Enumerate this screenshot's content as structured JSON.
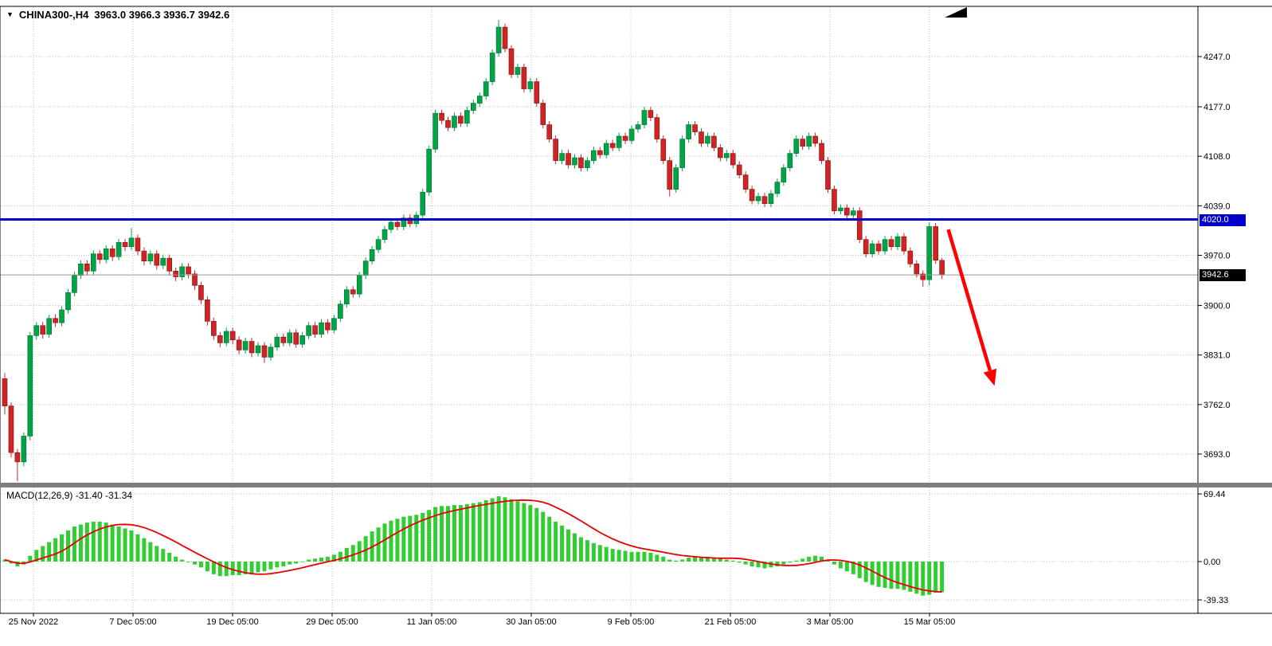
{
  "chart_window": {
    "dropdown_glyph": "▼",
    "symbol": "CHINA300-,H4",
    "ohlc": "3963.0 3966.3 3936.7 3942.6"
  },
  "price_axis": {
    "hline_label": "4020.0",
    "current_label": "3942.6"
  },
  "macd_panel": {
    "label": "MACD(12,26,9) -31.40 -31.34"
  },
  "colors": {
    "bull": "#00A447",
    "bull_edge": "#006B2D",
    "bear": "#D02424",
    "bear_edge": "#7E1010",
    "macd_histogram": "#32CD32",
    "signal": "#E80000",
    "hline": "#0000CC",
    "current_line": "#999999",
    "arrow": "#FF0000",
    "grid": "#C0C0C0",
    "axis_text": "#000000",
    "badge_hline_bg": "#0000CC",
    "badge_current_bg": "#000000"
  },
  "chart_data": [
    {
      "type": "candlestick",
      "title": "CHINA300-,H4",
      "symbol": "CHINA300-",
      "timeframe": "H4",
      "last_ohlc": {
        "open": 3963.0,
        "high": 3966.3,
        "low": 3936.7,
        "close": 3942.6
      },
      "y_ticks": [
        4247,
        4177,
        4108,
        4039,
        3970,
        3900,
        3831,
        3762,
        3693
      ],
      "x_ticks": [
        "25 Nov 2022",
        "7 Dec 05:00",
        "19 Dec 05:00",
        "29 Dec 05:00",
        "11 Jan 05:00",
        "30 Jan 05:00",
        "9 Feb 05:00",
        "21 Feb 05:00",
        "3 Mar 05:00",
        "15 Mar 05:00"
      ],
      "hline": 4020.0,
      "current_price": 3942.6,
      "annotation_arrow": {
        "from_bar": 149,
        "from_price": 4006,
        "to_bar": 156.3,
        "to_price": 3788,
        "color": "#FF0000"
      },
      "candles": [
        [
          3798,
          3806,
          3748,
          3760
        ],
        [
          3760,
          3765,
          3688,
          3695
        ],
        [
          3695,
          3700,
          3655,
          3682
        ],
        [
          3682,
          3723,
          3676,
          3718
        ],
        [
          3718,
          3863,
          3712,
          3858
        ],
        [
          3858,
          3877,
          3852,
          3872
        ],
        [
          3872,
          3877,
          3854,
          3860
        ],
        [
          3860,
          3887,
          3855,
          3882
        ],
        [
          3882,
          3888,
          3870,
          3876
        ],
        [
          3876,
          3899,
          3871,
          3894
        ],
        [
          3894,
          3923,
          3889,
          3918
        ],
        [
          3918,
          3947,
          3913,
          3942
        ],
        [
          3942,
          3963,
          3937,
          3958
        ],
        [
          3958,
          3963,
          3942,
          3948
        ],
        [
          3948,
          3977,
          3943,
          3972
        ],
        [
          3972,
          3977,
          3958,
          3964
        ],
        [
          3964,
          3984,
          3959,
          3979
        ],
        [
          3979,
          3984,
          3962,
          3968
        ],
        [
          3968,
          3993,
          3963,
          3988
        ],
        [
          3988,
          3993,
          3976,
          3982
        ],
        [
          3982,
          4008,
          3977,
          3994
        ],
        [
          3994,
          3999,
          3970,
          3976
        ],
        [
          3976,
          3981,
          3956,
          3962
        ],
        [
          3962,
          3977,
          3957,
          3972
        ],
        [
          3972,
          3977,
          3950,
          3956
        ],
        [
          3956,
          3971,
          3951,
          3966
        ],
        [
          3966,
          3971,
          3942,
          3948
        ],
        [
          3948,
          3953,
          3934,
          3940
        ],
        [
          3940,
          3959,
          3935,
          3954
        ],
        [
          3954,
          3959,
          3938,
          3944
        ],
        [
          3944,
          3949,
          3922,
          3928
        ],
        [
          3928,
          3933,
          3902,
          3908
        ],
        [
          3908,
          3913,
          3872,
          3878
        ],
        [
          3878,
          3883,
          3852,
          3858
        ],
        [
          3858,
          3863,
          3842,
          3848
        ],
        [
          3848,
          3869,
          3843,
          3864
        ],
        [
          3864,
          3869,
          3846,
          3852
        ],
        [
          3852,
          3857,
          3832,
          3838
        ],
        [
          3838,
          3855,
          3833,
          3850
        ],
        [
          3850,
          3855,
          3828,
          3834
        ],
        [
          3834,
          3849,
          3829,
          3844
        ],
        [
          3844,
          3849,
          3820,
          3828
        ],
        [
          3828,
          3847,
          3823,
          3842
        ],
        [
          3842,
          3861,
          3837,
          3856
        ],
        [
          3856,
          3861,
          3843,
          3848
        ],
        [
          3848,
          3867,
          3843,
          3862
        ],
        [
          3862,
          3867,
          3841,
          3846
        ],
        [
          3846,
          3863,
          3841,
          3858
        ],
        [
          3858,
          3877,
          3853,
          3872
        ],
        [
          3872,
          3877,
          3855,
          3860
        ],
        [
          3860,
          3881,
          3855,
          3876
        ],
        [
          3876,
          3881,
          3861,
          3866
        ],
        [
          3866,
          3887,
          3861,
          3882
        ],
        [
          3882,
          3907,
          3877,
          3902
        ],
        [
          3902,
          3927,
          3897,
          3922
        ],
        [
          3922,
          3927,
          3911,
          3916
        ],
        [
          3916,
          3947,
          3911,
          3942
        ],
        [
          3942,
          3967,
          3937,
          3962
        ],
        [
          3962,
          3983,
          3957,
          3978
        ],
        [
          3978,
          3997,
          3973,
          3992
        ],
        [
          3992,
          4011,
          3987,
          4006
        ],
        [
          4006,
          4021,
          4001,
          4016
        ],
        [
          4016,
          4021,
          4005,
          4010
        ],
        [
          4010,
          4027,
          4005,
          4022
        ],
        [
          4022,
          4027,
          4009,
          4014
        ],
        [
          4014,
          4031,
          4009,
          4026
        ],
        [
          4026,
          4063,
          4021,
          4058
        ],
        [
          4058,
          4123,
          4053,
          4118
        ],
        [
          4118,
          4173,
          4113,
          4168
        ],
        [
          4168,
          4173,
          4153,
          4158
        ],
        [
          4158,
          4163,
          4143,
          4148
        ],
        [
          4148,
          4169,
          4143,
          4164
        ],
        [
          4164,
          4169,
          4149,
          4154
        ],
        [
          4154,
          4177,
          4149,
          4172
        ],
        [
          4172,
          4187,
          4167,
          4182
        ],
        [
          4182,
          4197,
          4177,
          4192
        ],
        [
          4192,
          4217,
          4187,
          4212
        ],
        [
          4212,
          4257,
          4207,
          4252
        ],
        [
          4252,
          4298,
          4247,
          4288
        ],
        [
          4288,
          4293,
          4253,
          4258
        ],
        [
          4258,
          4263,
          4217,
          4222
        ],
        [
          4222,
          4237,
          4217,
          4232
        ],
        [
          4232,
          4237,
          4197,
          4202
        ],
        [
          4202,
          4217,
          4197,
          4212
        ],
        [
          4212,
          4217,
          4177,
          4182
        ],
        [
          4182,
          4187,
          4147,
          4152
        ],
        [
          4152,
          4157,
          4127,
          4132
        ],
        [
          4132,
          4137,
          4097,
          4102
        ],
        [
          4102,
          4117,
          4097,
          4112
        ],
        [
          4112,
          4117,
          4091,
          4096
        ],
        [
          4096,
          4111,
          4091,
          4106
        ],
        [
          4106,
          4111,
          4087,
          4092
        ],
        [
          4092,
          4107,
          4087,
          4102
        ],
        [
          4102,
          4121,
          4097,
          4116
        ],
        [
          4116,
          4121,
          4105,
          4110
        ],
        [
          4110,
          4131,
          4105,
          4126
        ],
        [
          4126,
          4131,
          4115,
          4120
        ],
        [
          4120,
          4141,
          4115,
          4136
        ],
        [
          4136,
          4141,
          4125,
          4130
        ],
        [
          4130,
          4151,
          4125,
          4146
        ],
        [
          4146,
          4157,
          4141,
          4152
        ],
        [
          4152,
          4177,
          4147,
          4172
        ],
        [
          4172,
          4177,
          4157,
          4162
        ],
        [
          4162,
          4167,
          4127,
          4132
        ],
        [
          4132,
          4137,
          4097,
          4102
        ],
        [
          4102,
          4107,
          4052,
          4062
        ],
        [
          4062,
          4097,
          4057,
          4092
        ],
        [
          4092,
          4137,
          4087,
          4132
        ],
        [
          4132,
          4157,
          4127,
          4152
        ],
        [
          4152,
          4157,
          4137,
          4142
        ],
        [
          4142,
          4147,
          4121,
          4126
        ],
        [
          4126,
          4141,
          4121,
          4136
        ],
        [
          4136,
          4141,
          4115,
          4120
        ],
        [
          4120,
          4125,
          4101,
          4106
        ],
        [
          4106,
          4117,
          4101,
          4112
        ],
        [
          4112,
          4117,
          4091,
          4096
        ],
        [
          4096,
          4101,
          4077,
          4082
        ],
        [
          4082,
          4087,
          4057,
          4062
        ],
        [
          4062,
          4067,
          4041,
          4046
        ],
        [
          4046,
          4057,
          4041,
          4052
        ],
        [
          4052,
          4057,
          4037,
          4042
        ],
        [
          4042,
          4061,
          4037,
          4056
        ],
        [
          4056,
          4077,
          4051,
          4072
        ],
        [
          4072,
          4097,
          4067,
          4092
        ],
        [
          4092,
          4117,
          4087,
          4112
        ],
        [
          4112,
          4137,
          4107,
          4132
        ],
        [
          4132,
          4137,
          4117,
          4122
        ],
        [
          4122,
          4141,
          4117,
          4136
        ],
        [
          4136,
          4141,
          4121,
          4126
        ],
        [
          4126,
          4131,
          4097,
          4102
        ],
        [
          4102,
          4107,
          4057,
          4062
        ],
        [
          4062,
          4067,
          4027,
          4032
        ],
        [
          4032,
          4041,
          4027,
          4036
        ],
        [
          4036,
          4041,
          4021,
          4026
        ],
        [
          4026,
          4037,
          4021,
          4032
        ],
        [
          4032,
          4037,
          3987,
          3992
        ],
        [
          3992,
          3997,
          3967,
          3972
        ],
        [
          3972,
          3991,
          3967,
          3986
        ],
        [
          3986,
          3991,
          3971,
          3976
        ],
        [
          3976,
          3997,
          3971,
          3992
        ],
        [
          3992,
          3997,
          3977,
          3982
        ],
        [
          3982,
          4001,
          3977,
          3996
        ],
        [
          3996,
          4001,
          3971,
          3976
        ],
        [
          3976,
          3981,
          3953,
          3958
        ],
        [
          3958,
          3963,
          3939,
          3944
        ],
        [
          3944,
          3949,
          3926,
          3936
        ],
        [
          3936,
          4016,
          3928,
          4010
        ],
        [
          4010,
          4015,
          3958,
          3963
        ],
        [
          3963,
          3966.3,
          3936.7,
          3942.6
        ]
      ]
    },
    {
      "type": "bar",
      "title": "MACD(12,26,9)",
      "macd_value": -31.4,
      "signal_value": -31.34,
      "signal_period": 9,
      "y_ticks": [
        69.44,
        0,
        -39.33
      ],
      "values": [
        2,
        -2,
        -5,
        -3,
        6,
        12,
        16,
        20,
        24,
        28,
        32,
        36,
        38,
        40,
        41,
        41,
        40,
        38,
        36,
        34,
        32,
        28,
        24,
        20,
        16,
        13,
        9,
        5,
        2,
        0,
        -3,
        -6,
        -10,
        -13,
        -15,
        -15,
        -14,
        -14,
        -13,
        -12,
        -11,
        -10,
        -8,
        -6,
        -5,
        -3,
        -2,
        0,
        2,
        3,
        4,
        5,
        7,
        10,
        14,
        17,
        21,
        26,
        31,
        35,
        39,
        42,
        44,
        46,
        47,
        48,
        50,
        53,
        56,
        57,
        57,
        58,
        58,
        59,
        60,
        61,
        63,
        65,
        67,
        66,
        64,
        62,
        60,
        58,
        55,
        51,
        46,
        41,
        37,
        33,
        29,
        25,
        22,
        19,
        17,
        15,
        13,
        12,
        11,
        10,
        10,
        10,
        9,
        7,
        5,
        2,
        1,
        2,
        4,
        5,
        5,
        5,
        4,
        3,
        2,
        1,
        -1,
        -3,
        -5,
        -6,
        -7,
        -6,
        -5,
        -3,
        -1,
        1,
        3,
        5,
        6,
        5,
        2,
        -3,
        -7,
        -10,
        -13,
        -17,
        -21,
        -24,
        -26,
        -27,
        -28,
        -28,
        -29,
        -31,
        -33,
        -35,
        -34,
        -32,
        -31.4
      ]
    }
  ]
}
